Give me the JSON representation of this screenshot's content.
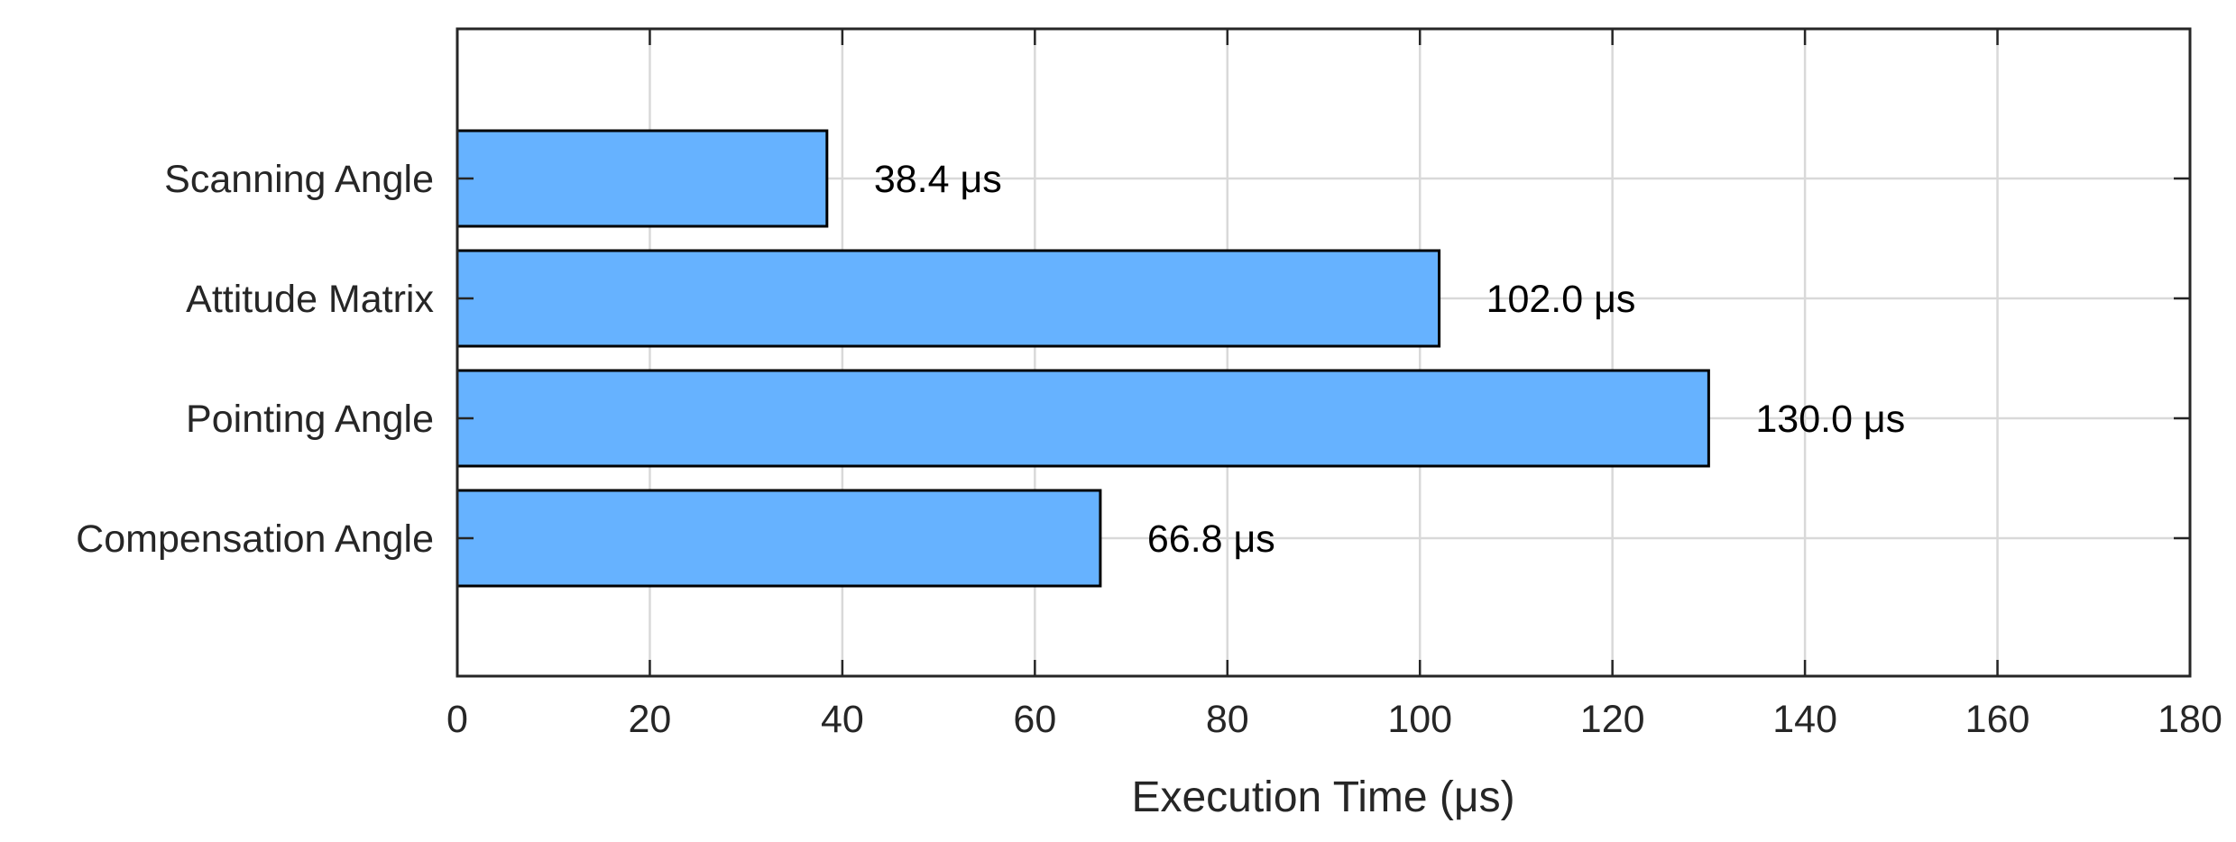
{
  "chart_data": {
    "type": "bar",
    "orientation": "horizontal",
    "categories": [
      "Scanning Angle",
      "Attitude Matrix",
      "Pointing Angle",
      "Compensation Angle"
    ],
    "values": [
      38.4,
      102.0,
      130.0,
      66.8
    ],
    "data_labels": [
      "38.4 μs",
      "102.0 μs",
      "130.0 μs",
      "66.8 μs"
    ],
    "title": "",
    "xlabel": "Execution Time (μs)",
    "ylabel": "",
    "xlim": [
      0,
      180
    ],
    "xticks": [
      0,
      20,
      40,
      60,
      80,
      100,
      120,
      140,
      160,
      180
    ],
    "grid": true,
    "bar_color": "#66b2ff",
    "bar_edge_color": "#000000"
  }
}
